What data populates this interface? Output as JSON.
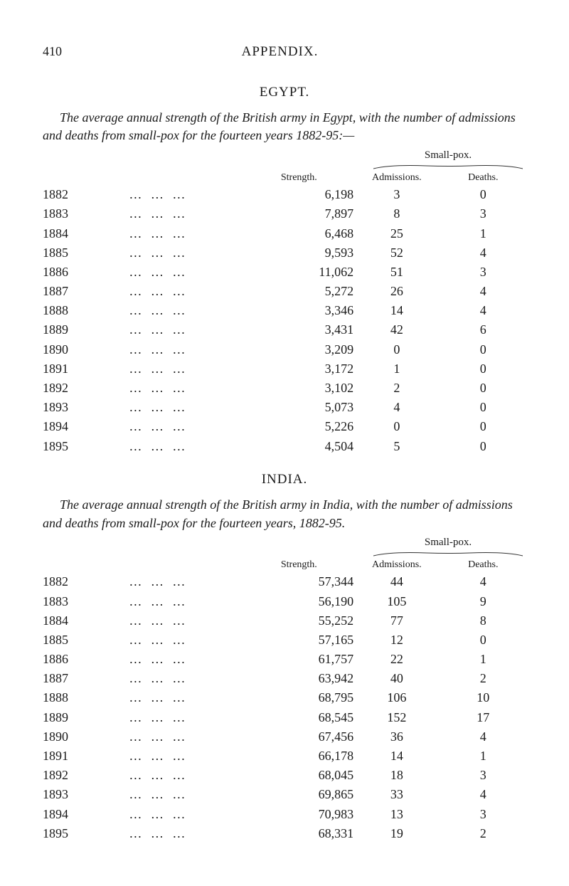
{
  "page_number": "410",
  "page_title": "APPENDIX.",
  "egypt": {
    "title": "EGYPT.",
    "intro": "The average annual strength of the British army in Egypt, with the number of admissions and deaths from small-pox for the fourteen years 1882-95:—",
    "smallpox_label": "Small-pox.",
    "columns": {
      "strength": "Strength.",
      "admissions": "Admissions.",
      "deaths": "Deaths."
    },
    "rows": [
      {
        "year": "1882",
        "strength": "6,198",
        "adm": "3",
        "deaths": "0"
      },
      {
        "year": "1883",
        "strength": "7,897",
        "adm": "8",
        "deaths": "3"
      },
      {
        "year": "1884",
        "strength": "6,468",
        "adm": "25",
        "deaths": "1"
      },
      {
        "year": "1885",
        "strength": "9,593",
        "adm": "52",
        "deaths": "4"
      },
      {
        "year": "1886",
        "strength": "11,062",
        "adm": "51",
        "deaths": "3"
      },
      {
        "year": "1887",
        "strength": "5,272",
        "adm": "26",
        "deaths": "4"
      },
      {
        "year": "1888",
        "strength": "3,346",
        "adm": "14",
        "deaths": "4"
      },
      {
        "year": "1889",
        "strength": "3,431",
        "adm": "42",
        "deaths": "6"
      },
      {
        "year": "1890",
        "strength": "3,209",
        "adm": "0",
        "deaths": "0"
      },
      {
        "year": "1891",
        "strength": "3,172",
        "adm": "1",
        "deaths": "0"
      },
      {
        "year": "1892",
        "strength": "3,102",
        "adm": "2",
        "deaths": "0"
      },
      {
        "year": "1893",
        "strength": "5,073",
        "adm": "4",
        "deaths": "0"
      },
      {
        "year": "1894",
        "strength": "5,226",
        "adm": "0",
        "deaths": "0"
      },
      {
        "year": "1895",
        "strength": "4,504",
        "adm": "5",
        "deaths": "0"
      }
    ]
  },
  "india": {
    "title": "INDIA.",
    "intro": "The average annual strength of the British army in India, with the number of admissions and deaths from small-pox for the fourteen years, 1882-95.",
    "smallpox_label": "Small-pox.",
    "columns": {
      "strength": "Strength.",
      "admissions": "Admissions.",
      "deaths": "Deaths."
    },
    "rows": [
      {
        "year": "1882",
        "strength": "57,344",
        "adm": "44",
        "deaths": "4"
      },
      {
        "year": "1883",
        "strength": "56,190",
        "adm": "105",
        "deaths": "9"
      },
      {
        "year": "1884",
        "strength": "55,252",
        "adm": "77",
        "deaths": "8"
      },
      {
        "year": "1885",
        "strength": "57,165",
        "adm": "12",
        "deaths": "0"
      },
      {
        "year": "1886",
        "strength": "61,757",
        "adm": "22",
        "deaths": "1"
      },
      {
        "year": "1887",
        "strength": "63,942",
        "adm": "40",
        "deaths": "2"
      },
      {
        "year": "1888",
        "strength": "68,795",
        "adm": "106",
        "deaths": "10"
      },
      {
        "year": "1889",
        "strength": "68,545",
        "adm": "152",
        "deaths": "17"
      },
      {
        "year": "1890",
        "strength": "67,456",
        "adm": "36",
        "deaths": "4"
      },
      {
        "year": "1891",
        "strength": "66,178",
        "adm": "14",
        "deaths": "1"
      },
      {
        "year": "1892",
        "strength": "68,045",
        "adm": "18",
        "deaths": "3"
      },
      {
        "year": "1893",
        "strength": "69,865",
        "adm": "33",
        "deaths": "4"
      },
      {
        "year": "1894",
        "strength": "70,983",
        "adm": "13",
        "deaths": "3"
      },
      {
        "year": "1895",
        "strength": "68,331",
        "adm": "19",
        "deaths": "2"
      }
    ]
  },
  "dots": "…   …   …",
  "style": {
    "bg": "#ffffff",
    "fg": "#1a1a1a",
    "font": "Times New Roman"
  }
}
